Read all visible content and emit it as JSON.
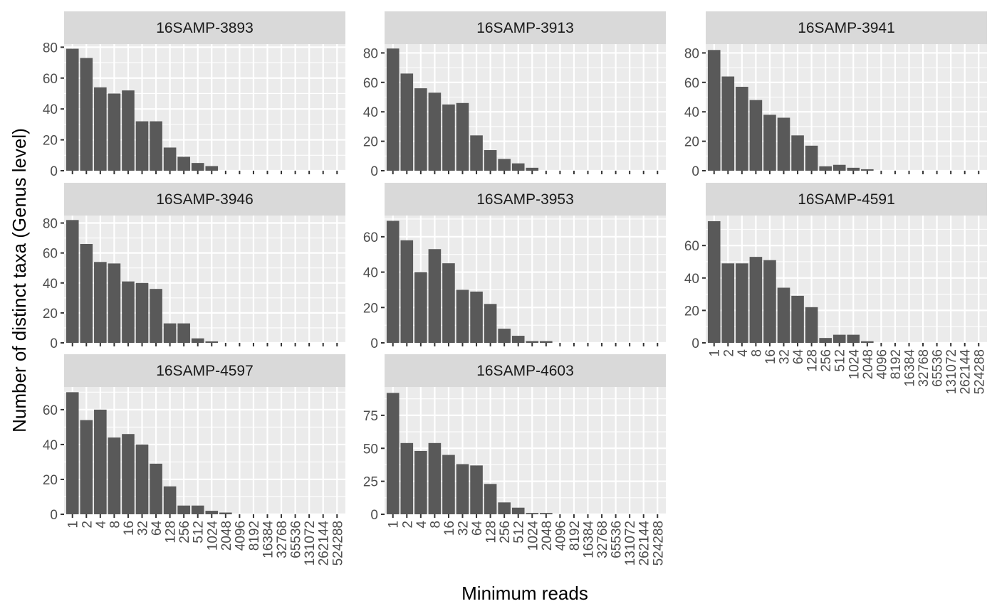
{
  "chart_data": {
    "type": "bar",
    "xlabel": "Minimum reads",
    "ylabel": "Number of distinct taxa (Genus level)",
    "categories": [
      "1",
      "2",
      "4",
      "8",
      "16",
      "32",
      "64",
      "128",
      "256",
      "512",
      "1024",
      "2048",
      "4096",
      "8192",
      "16384",
      "32768",
      "65536",
      "131072",
      "262144",
      "524288"
    ],
    "grid": true,
    "facet_scales": "free_y",
    "colors": {
      "bar": "#595959",
      "panel": "#ebebeb",
      "strip": "#d9d9d9",
      "grid": "#ffffff"
    },
    "panels": [
      {
        "name": "16SAMP-3893",
        "ylim": [
          0,
          82
        ],
        "yticks": [
          0,
          20,
          40,
          60,
          80
        ],
        "values": [
          79,
          73,
          54,
          50,
          52,
          32,
          32,
          15,
          9,
          5,
          3,
          0,
          0,
          0,
          0,
          0,
          0,
          0,
          0,
          0
        ]
      },
      {
        "name": "16SAMP-3913",
        "ylim": [
          0,
          86
        ],
        "yticks": [
          0,
          20,
          40,
          60,
          80
        ],
        "values": [
          83,
          66,
          56,
          53,
          45,
          46,
          24,
          14,
          8,
          5,
          2,
          0,
          0,
          0,
          0,
          0,
          0,
          0,
          0,
          0
        ]
      },
      {
        "name": "16SAMP-3941",
        "ylim": [
          0,
          86
        ],
        "yticks": [
          0,
          20,
          40,
          60,
          80
        ],
        "values": [
          82,
          64,
          57,
          48,
          38,
          36,
          24,
          17,
          3,
          4,
          2,
          1,
          0,
          0,
          0,
          0,
          0,
          0,
          0,
          0
        ]
      },
      {
        "name": "16SAMP-3946",
        "ylim": [
          0,
          85
        ],
        "yticks": [
          0,
          20,
          40,
          60,
          80
        ],
        "values": [
          82,
          66,
          54,
          53,
          41,
          40,
          36,
          13,
          13,
          3,
          1,
          0,
          0,
          0,
          0,
          0,
          0,
          0,
          0,
          0
        ]
      },
      {
        "name": "16SAMP-3953",
        "ylim": [
          0,
          72
        ],
        "yticks": [
          0,
          20,
          40,
          60
        ],
        "values": [
          69,
          58,
          40,
          53,
          45,
          30,
          29,
          22,
          8,
          4,
          1,
          1,
          0,
          0,
          0,
          0,
          0,
          0,
          0,
          0
        ]
      },
      {
        "name": "16SAMP-4591",
        "ylim": [
          0,
          78.5
        ],
        "yticks": [
          0,
          20,
          40,
          60
        ],
        "values": [
          75,
          49,
          49,
          53,
          51,
          34,
          29,
          22,
          3,
          5,
          5,
          1,
          0,
          0,
          0,
          0,
          0,
          0,
          0,
          0
        ]
      },
      {
        "name": "16SAMP-4597",
        "ylim": [
          0,
          73
        ],
        "yticks": [
          0,
          20,
          40,
          60
        ],
        "values": [
          70,
          54,
          60,
          44,
          46,
          40,
          29,
          16,
          5,
          5,
          2,
          1,
          0,
          0,
          0,
          0,
          0,
          0,
          0,
          0
        ]
      },
      {
        "name": "16SAMP-4603",
        "ylim": [
          0,
          96.5
        ],
        "yticks": [
          0,
          25,
          50,
          75
        ],
        "values": [
          92,
          54,
          48,
          54,
          45,
          38,
          37,
          23,
          9,
          5,
          1,
          1,
          0,
          0,
          0,
          0,
          0,
          0,
          0,
          0
        ]
      }
    ]
  }
}
